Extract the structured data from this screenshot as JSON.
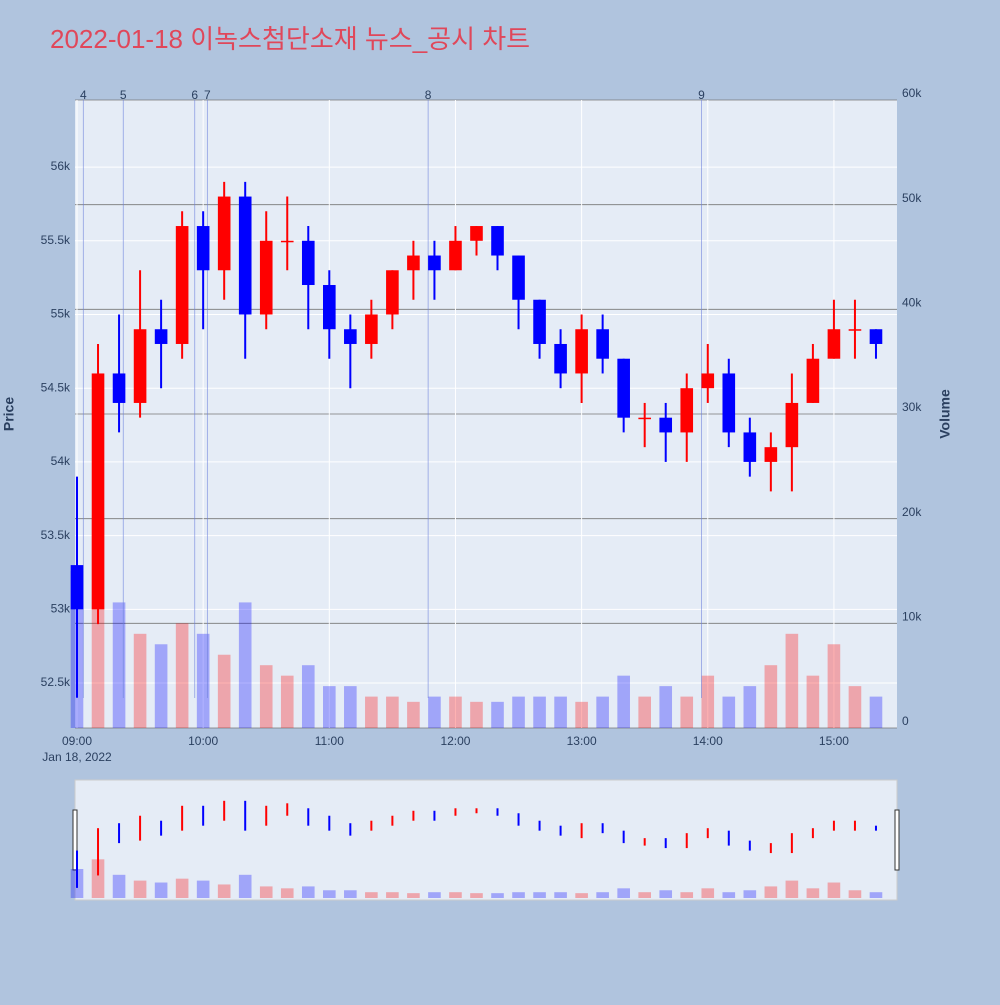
{
  "chart_data": {
    "type": "candlestick",
    "title": "2022-01-18 이녹스첨단소재 뉴스_공시 차트",
    "y_title": "Price",
    "y2_title": "Volume",
    "x_date_label": "Jan 18, 2022",
    "x": [
      "09:00",
      "09:10",
      "09:20",
      "09:30",
      "09:40",
      "09:50",
      "10:00",
      "10:10",
      "10:20",
      "10:30",
      "10:40",
      "10:50",
      "11:00",
      "11:10",
      "11:20",
      "11:30",
      "11:40",
      "11:50",
      "12:00",
      "12:10",
      "12:20",
      "12:30",
      "12:40",
      "12:50",
      "13:00",
      "13:10",
      "13:20",
      "13:30",
      "13:40",
      "13:50",
      "14:00",
      "14:10",
      "14:20",
      "14:30",
      "14:40",
      "14:50",
      "15:00",
      "15:10",
      "15:20"
    ],
    "open": [
      53300,
      53000,
      54600,
      54400,
      54900,
      54800,
      55600,
      55300,
      55800,
      55000,
      55500,
      55500,
      55200,
      54900,
      54800,
      55000,
      55300,
      55400,
      55300,
      55500,
      55600,
      55400,
      55100,
      54800,
      54600,
      54900,
      54700,
      54300,
      54300,
      54200,
      54500,
      54600,
      54200,
      54000,
      54100,
      54400,
      54700,
      54900,
      54900
    ],
    "high": [
      53900,
      54800,
      55000,
      55300,
      55100,
      55700,
      55700,
      55900,
      55900,
      55700,
      55800,
      55600,
      55300,
      55000,
      55100,
      55300,
      55500,
      55500,
      55600,
      55600,
      55600,
      55400,
      55100,
      54900,
      55000,
      55000,
      54700,
      54400,
      54400,
      54600,
      54800,
      54700,
      54300,
      54200,
      54600,
      54800,
      55100,
      55100,
      54900
    ],
    "low": [
      52400,
      52900,
      54200,
      54300,
      54500,
      54700,
      54900,
      55100,
      54700,
      54900,
      55300,
      54900,
      54700,
      54500,
      54700,
      54900,
      55100,
      55100,
      55300,
      55400,
      55300,
      54900,
      54700,
      54500,
      54400,
      54600,
      54200,
      54100,
      54000,
      54000,
      54400,
      54100,
      53900,
      53800,
      53800,
      54400,
      54700,
      54700,
      54700
    ],
    "close": [
      53000,
      54600,
      54400,
      54900,
      54800,
      55600,
      55300,
      55800,
      55000,
      55500,
      55500,
      55200,
      54900,
      54800,
      55000,
      55300,
      55400,
      55300,
      55500,
      55600,
      55400,
      55100,
      54800,
      54600,
      54900,
      54700,
      54300,
      54300,
      54200,
      54500,
      54600,
      54200,
      54000,
      54100,
      54400,
      54700,
      54900,
      54900,
      54800
    ],
    "volume": [
      15000,
      20000,
      12000,
      9000,
      8000,
      10000,
      9000,
      7000,
      12000,
      6000,
      5000,
      6000,
      4000,
      4000,
      3000,
      3000,
      2500,
      3000,
      3000,
      2500,
      2500,
      3000,
      3000,
      3000,
      2500,
      3000,
      5000,
      3000,
      4000,
      3000,
      5000,
      3000,
      4000,
      6000,
      9000,
      5000,
      8000,
      4000,
      3000
    ],
    "up_color": "#ff0000",
    "down_color": "#0000ff",
    "xlim": [
      "09:00",
      "15:30"
    ],
    "xticks": [
      "09:00",
      "10:00",
      "11:00",
      "12:00",
      "13:00",
      "14:00",
      "15:00"
    ],
    "ylim": [
      52195,
      56455
    ],
    "yticks": [
      {
        "value": 52500,
        "label": "52.5k"
      },
      {
        "value": 53000,
        "label": "53k"
      },
      {
        "value": 53500,
        "label": "53.5k"
      },
      {
        "value": 54000,
        "label": "54k"
      },
      {
        "value": 54500,
        "label": "54.5k"
      },
      {
        "value": 55000,
        "label": "55k"
      },
      {
        "value": 55500,
        "label": "55.5k"
      },
      {
        "value": 56000,
        "label": "56k"
      }
    ],
    "y2lim": [
      0,
      60000
    ],
    "y2ticks": [
      0,
      {
        "value": 10000,
        "label": "10k"
      },
      {
        "value": 20000,
        "label": "20k"
      },
      {
        "value": 30000,
        "label": "30k"
      },
      {
        "value": 40000,
        "label": "40k"
      },
      {
        "value": 50000,
        "label": "50k"
      },
      {
        "value": 60000,
        "label": "60k"
      }
    ],
    "annotations": [
      {
        "label": "4",
        "x": "09:03"
      },
      {
        "label": "5",
        "x": "09:22"
      },
      {
        "label": "6",
        "x": "09:56"
      },
      {
        "label": "7",
        "x": "10:02"
      },
      {
        "label": "8",
        "x": "11:47"
      },
      {
        "label": "9",
        "x": "13:57"
      }
    ]
  }
}
